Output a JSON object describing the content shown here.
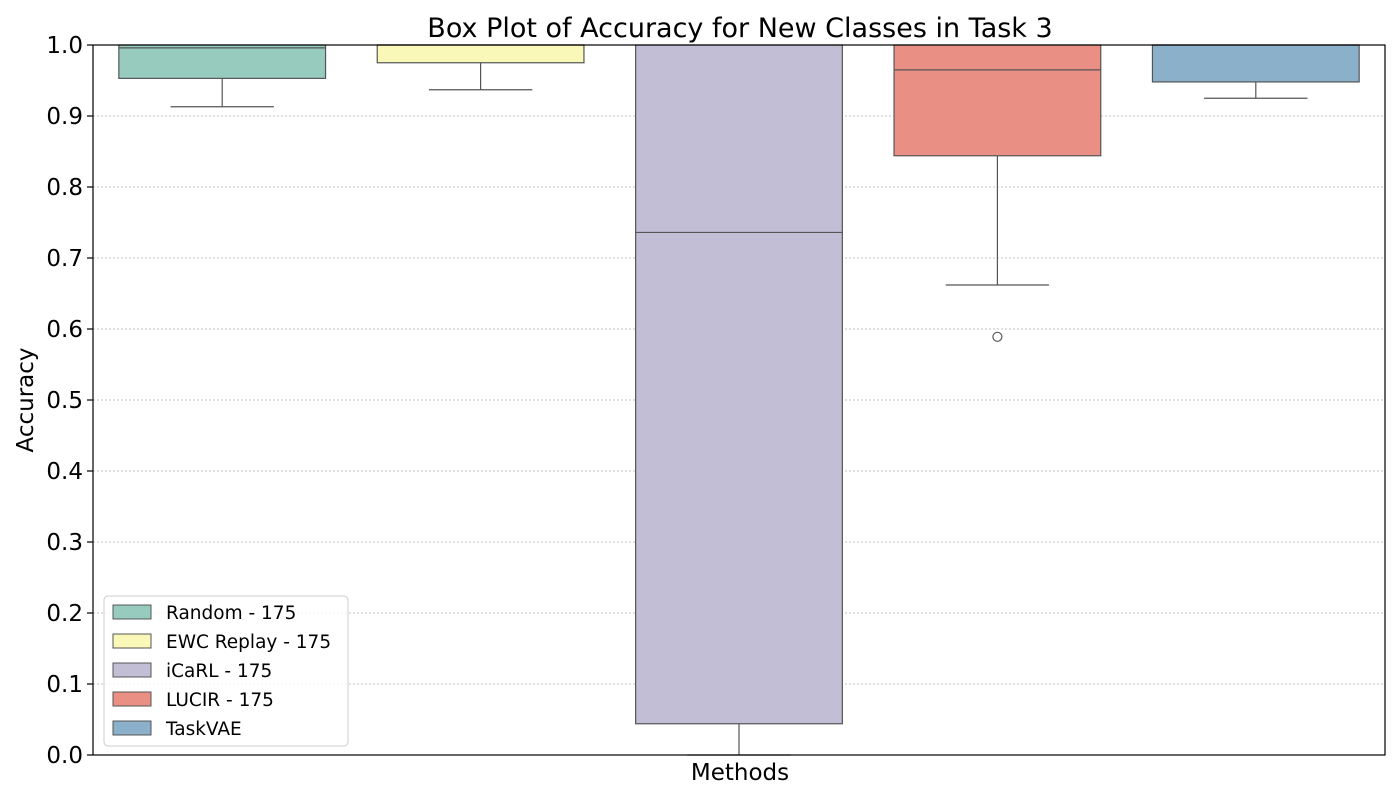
{
  "chart_data": {
    "type": "box",
    "title": "Box Plot of Accuracy for New Classes in Task 3",
    "xlabel": "Methods",
    "ylabel": "Accuracy",
    "ylim": [
      0,
      1
    ],
    "yticks": [
      "0.0",
      "0.1",
      "0.2",
      "0.3",
      "0.4",
      "0.5",
      "0.6",
      "0.7",
      "0.8",
      "0.9",
      "1.0"
    ],
    "grid": "y-dotted",
    "legend_position": "lower-left",
    "series": [
      {
        "name": "Random - 175",
        "color": "#96CBBE",
        "whisker_low": 0.913,
        "q1": 0.953,
        "median": 0.996,
        "q3": 1.0,
        "whisker_high": 1.0,
        "outliers": []
      },
      {
        "name": "EWC Replay - 175",
        "color": "#FAF8B9",
        "whisker_low": 0.937,
        "q1": 0.975,
        "median": 1.0,
        "q3": 1.0,
        "whisker_high": 1.0,
        "outliers": []
      },
      {
        "name": "iCaRL - 175",
        "color": "#C1BED6",
        "whisker_low": 0.0,
        "q1": 0.044,
        "median": 0.736,
        "q3": 1.0,
        "whisker_high": 1.0,
        "outliers": []
      },
      {
        "name": "LUCIR - 175",
        "color": "#EA8F84",
        "whisker_low": 0.662,
        "q1": 0.844,
        "median": 0.965,
        "q3": 1.0,
        "whisker_high": 1.0,
        "outliers": [
          0.589
        ]
      },
      {
        "name": "TaskVAE",
        "color": "#8BB0C9",
        "whisker_low": 0.925,
        "q1": 0.948,
        "median": 1.0,
        "q3": 1.0,
        "whisker_high": 1.0,
        "outliers": []
      }
    ]
  }
}
